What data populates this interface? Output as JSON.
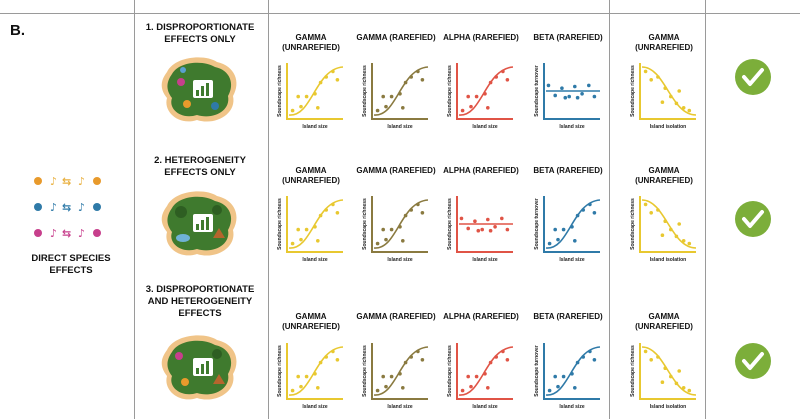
{
  "section_label": "B.",
  "direct_effects_label": "DIRECT SPECIES EFFECTS",
  "colors": {
    "gamma_unrarefied": "#e8c830",
    "gamma_rarefied": "#8a7a40",
    "alpha_rarefied": "#e05446",
    "beta_rarefied": "#2f7aa8",
    "isolation": "#e8c830",
    "check": "#7cae3a"
  },
  "panel_headers": [
    "GAMMA (UNREARFIED)",
    "GAMMA (RAREFIED)",
    "ALPHA (RAREFIED)",
    "BETA (RAREFIED)",
    "GAMMA (UNRAREFIED)"
  ],
  "axis_labels": {
    "richness": "Soundscape richness",
    "turnover": "Soundscape turnover",
    "island_size": "Island size",
    "island_isolation": "Island isolation"
  },
  "scenarios": [
    {
      "title": "1. DISPROPORTIONATE EFFECTS ONLY",
      "headers": [
        "GAMMA (UNRAREFIED)",
        "GAMMA (RAREFIED)",
        "ALPHA (RAREFIED)",
        "BETA (RAREFIED)",
        "GAMMA (UNRAREFIED)"
      ],
      "patterns": [
        "rise",
        "rise",
        "rise",
        "flat",
        "decline"
      ]
    },
    {
      "title": "2. HETEROGENEITY EFFECTS ONLY",
      "headers": [
        "GAMMA (UNRAREFIED)",
        "GAMMA (RAREFIED)",
        "ALPHA (RAREFIED)",
        "BETA (RAREFIED)",
        "GAMMA (UNRAREFIED)"
      ],
      "patterns": [
        "rise",
        "rise",
        "flat",
        "rise",
        "decline"
      ]
    },
    {
      "title": "3. DISPROPORTIONATE AND HETEROGENEITY EFFECTS",
      "headers": [
        "GAMMA (UNRAREFIED)",
        "GAMMA (RAREFIED)",
        "ALPHA (RAREFIED)",
        "BETA (RAREFIED)",
        "GAMMA (UNRAREFIED)"
      ],
      "patterns": [
        "rise",
        "rise",
        "rise",
        "rise",
        "decline"
      ]
    }
  ]
}
